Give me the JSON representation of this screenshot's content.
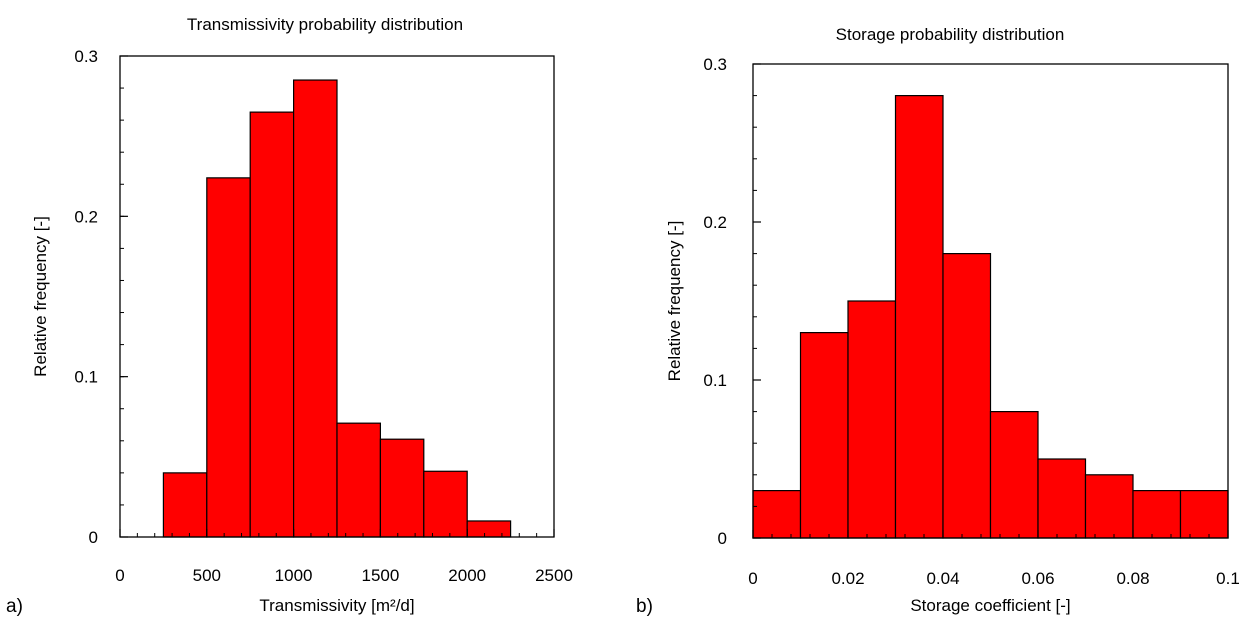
{
  "colors": {
    "bar_fill": "#ff0000",
    "bar_stroke": "#000000",
    "axis": "#000000",
    "background": "#ffffff"
  },
  "chart_data": [
    {
      "type": "bar",
      "panel_label": "a)",
      "title": "Transmissivity probability distribution",
      "xlabel": "Transmissivity [m²/d]",
      "ylabel": "Relative frequency [-]",
      "xlim": [
        0,
        2500
      ],
      "ylim": [
        0,
        0.3
      ],
      "x_ticks": [
        0,
        500,
        1000,
        1500,
        2000,
        2500
      ],
      "x_tick_labels": [
        "0",
        "500",
        "1000",
        "1500",
        "2000",
        "2500"
      ],
      "y_ticks": [
        0,
        0.1,
        0.2,
        0.3
      ],
      "y_tick_labels": [
        "0",
        "0.1",
        "0.2",
        "0.3"
      ],
      "x_minor_step": 100,
      "y_minor_step": 0.02,
      "bins": [
        [
          250,
          500
        ],
        [
          500,
          750
        ],
        [
          750,
          1000
        ],
        [
          1000,
          1250
        ],
        [
          1250,
          1500
        ],
        [
          1500,
          1750
        ],
        [
          1750,
          2000
        ],
        [
          2000,
          2250
        ]
      ],
      "values": [
        0.04,
        0.224,
        0.265,
        0.285,
        0.071,
        0.061,
        0.041,
        0.01
      ],
      "grid": false
    },
    {
      "type": "bar",
      "panel_label": "b)",
      "title": "Storage probability distribution",
      "xlabel": "Storage coefficient [-]",
      "ylabel": "Relative frequency [-]",
      "xlim": [
        0,
        0.1
      ],
      "ylim": [
        0,
        0.3
      ],
      "x_ticks": [
        0,
        0.02,
        0.04,
        0.06,
        0.08,
        0.1
      ],
      "x_tick_labels": [
        "0",
        "0.02",
        "0.04",
        "0.06",
        "0.08",
        "0.1"
      ],
      "y_ticks": [
        0,
        0.1,
        0.2,
        0.3
      ],
      "y_tick_labels": [
        "0",
        "0.1",
        "0.2",
        "0.3"
      ],
      "x_minor_step": 0.004,
      "y_minor_step": 0.02,
      "bins": [
        [
          0,
          0.01
        ],
        [
          0.01,
          0.02
        ],
        [
          0.02,
          0.03
        ],
        [
          0.03,
          0.04
        ],
        [
          0.04,
          0.05
        ],
        [
          0.05,
          0.06
        ],
        [
          0.06,
          0.07
        ],
        [
          0.07,
          0.08
        ],
        [
          0.08,
          0.09
        ],
        [
          0.09,
          0.1
        ]
      ],
      "values": [
        0.03,
        0.13,
        0.15,
        0.28,
        0.18,
        0.08,
        0.05,
        0.04,
        0.03,
        0.03
      ],
      "grid": false
    }
  ]
}
